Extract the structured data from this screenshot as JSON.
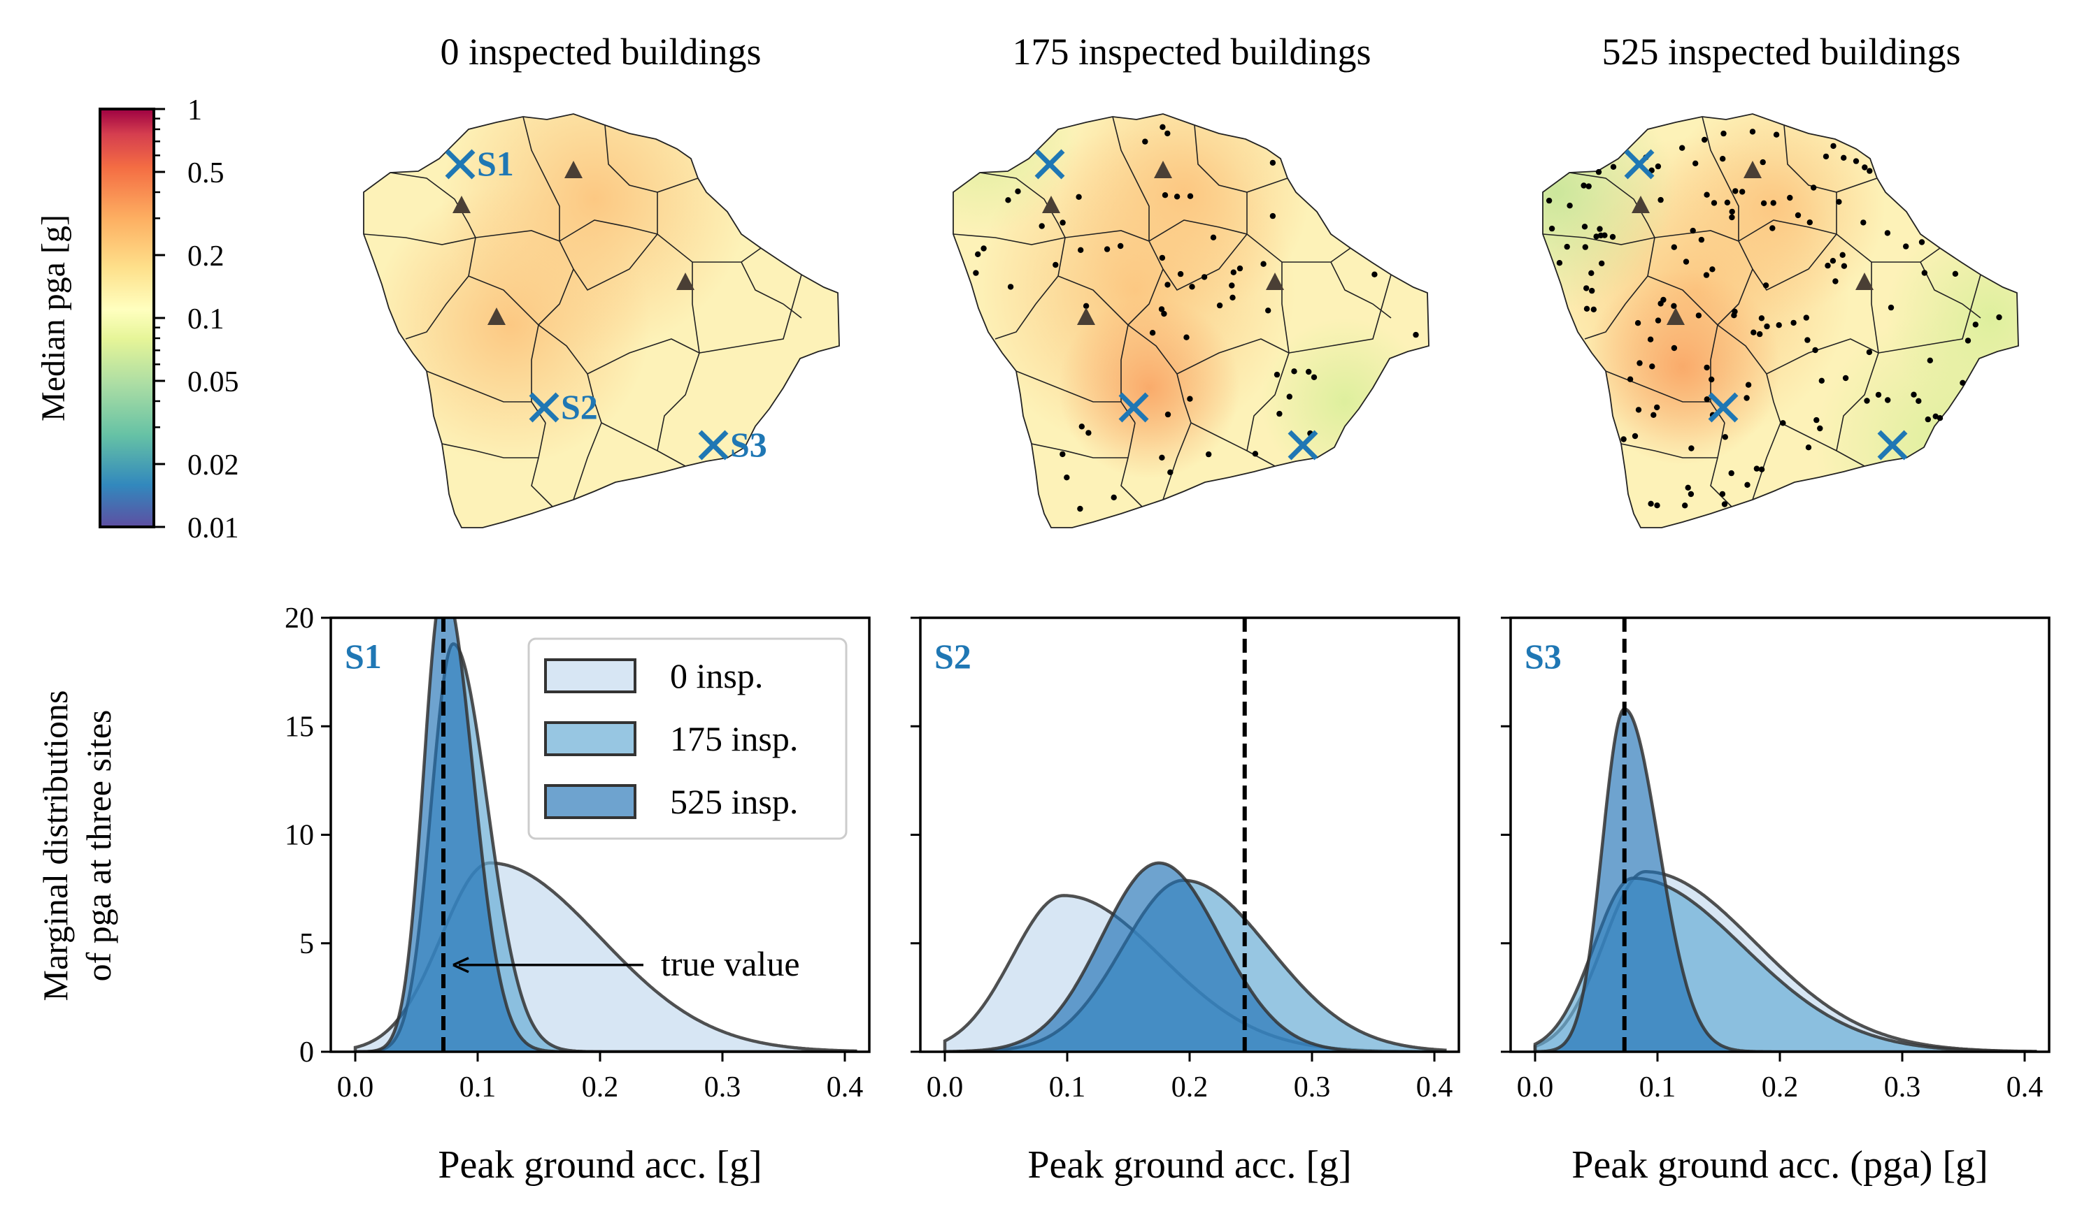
{
  "maps": {
    "colorbar_label": "Median pga [g]",
    "colorbar_ticks": [
      "1",
      "0.5",
      "0.2",
      "0.1",
      "0.05",
      "0.02",
      "0.01"
    ],
    "colorbar_tick_values": [
      1,
      0.5,
      0.2,
      0.1,
      0.05,
      0.02,
      0.01
    ],
    "colorbar_scale": "log",
    "colorbar_colormap": "Spectral_r",
    "panels": [
      {
        "title": "0 inspected buildings",
        "site_labels": [
          "S1",
          "S2",
          "S3"
        ],
        "inspected_points": 0
      },
      {
        "title": "175 inspected buildings",
        "site_labels": [],
        "inspected_points": 175
      },
      {
        "title": "525 inspected buildings",
        "site_labels": [],
        "inspected_points": 525
      }
    ],
    "site_marker_color": "#1f77b4",
    "station_marker_color": "#4a3f35"
  },
  "row_label_line1": "Marginal distributions",
  "row_label_line2": "of pga at three sites",
  "chart_data": [
    {
      "type": "area",
      "site": "S1",
      "xlabel": "Peak ground acc. [g]",
      "ylabel": "",
      "xlim": [
        -0.02,
        0.42
      ],
      "ylim": [
        0,
        20
      ],
      "x_ticks": [
        "0.0",
        "0.1",
        "0.2",
        "0.3",
        "0.4"
      ],
      "y_ticks": [
        "0",
        "5",
        "10",
        "15",
        "20"
      ],
      "true_value": 0.072,
      "annotation": "true value",
      "legend": {
        "position": "upper right",
        "entries": [
          "0 insp.",
          "175 insp.",
          "525 insp."
        ]
      },
      "series": [
        {
          "name": "0 insp.",
          "mode": 0.11,
          "peak": 8.7,
          "left_width": 0.04,
          "right_width": 0.09
        },
        {
          "name": "175 insp.",
          "mode": 0.08,
          "peak": 18.8,
          "left_width": 0.018,
          "right_width": 0.028
        },
        {
          "name": "525 insp.",
          "mode": 0.072,
          "peak": 21.5,
          "left_width": 0.016,
          "right_width": 0.024
        }
      ]
    },
    {
      "type": "area",
      "site": "S2",
      "xlabel": "Peak ground acc. [g]",
      "ylabel": "",
      "xlim": [
        -0.02,
        0.42
      ],
      "ylim": [
        0,
        20
      ],
      "x_ticks": [
        "0.0",
        "0.1",
        "0.2",
        "0.3",
        "0.4"
      ],
      "y_ticks": [
        "0",
        "5",
        "10",
        "15",
        "20"
      ],
      "true_value": 0.245,
      "series": [
        {
          "name": "0 insp.",
          "mode": 0.097,
          "peak": 7.2,
          "left_width": 0.042,
          "right_width": 0.08
        },
        {
          "name": "175 insp.",
          "mode": 0.195,
          "peak": 7.9,
          "left_width": 0.05,
          "right_width": 0.07
        },
        {
          "name": "525 insp.",
          "mode": 0.175,
          "peak": 8.7,
          "left_width": 0.047,
          "right_width": 0.05
        }
      ]
    },
    {
      "type": "area",
      "site": "S3",
      "xlabel": "Peak ground acc. (pga) [g]",
      "ylabel": "",
      "xlim": [
        -0.02,
        0.42
      ],
      "ylim": [
        0,
        20
      ],
      "x_ticks": [
        "0.0",
        "0.1",
        "0.2",
        "0.3",
        "0.4"
      ],
      "y_ticks": [
        "0",
        "5",
        "10",
        "15",
        "20"
      ],
      "true_value": 0.073,
      "series": [
        {
          "name": "0 insp.",
          "mode": 0.09,
          "peak": 8.3,
          "left_width": 0.034,
          "right_width": 0.09
        },
        {
          "name": "175 insp.",
          "mode": 0.08,
          "peak": 8.0,
          "left_width": 0.032,
          "right_width": 0.09
        },
        {
          "name": "525 insp.",
          "mode": 0.073,
          "peak": 15.8,
          "left_width": 0.018,
          "right_width": 0.028
        }
      ]
    }
  ],
  "colors": {
    "series_fill": [
      "#c6dbef",
      "#6baed6",
      "#2171b5"
    ],
    "series_opacity": [
      0.7,
      0.7,
      0.65
    ],
    "series_stroke": "#333333",
    "site_label_color": "#1f77b4"
  }
}
